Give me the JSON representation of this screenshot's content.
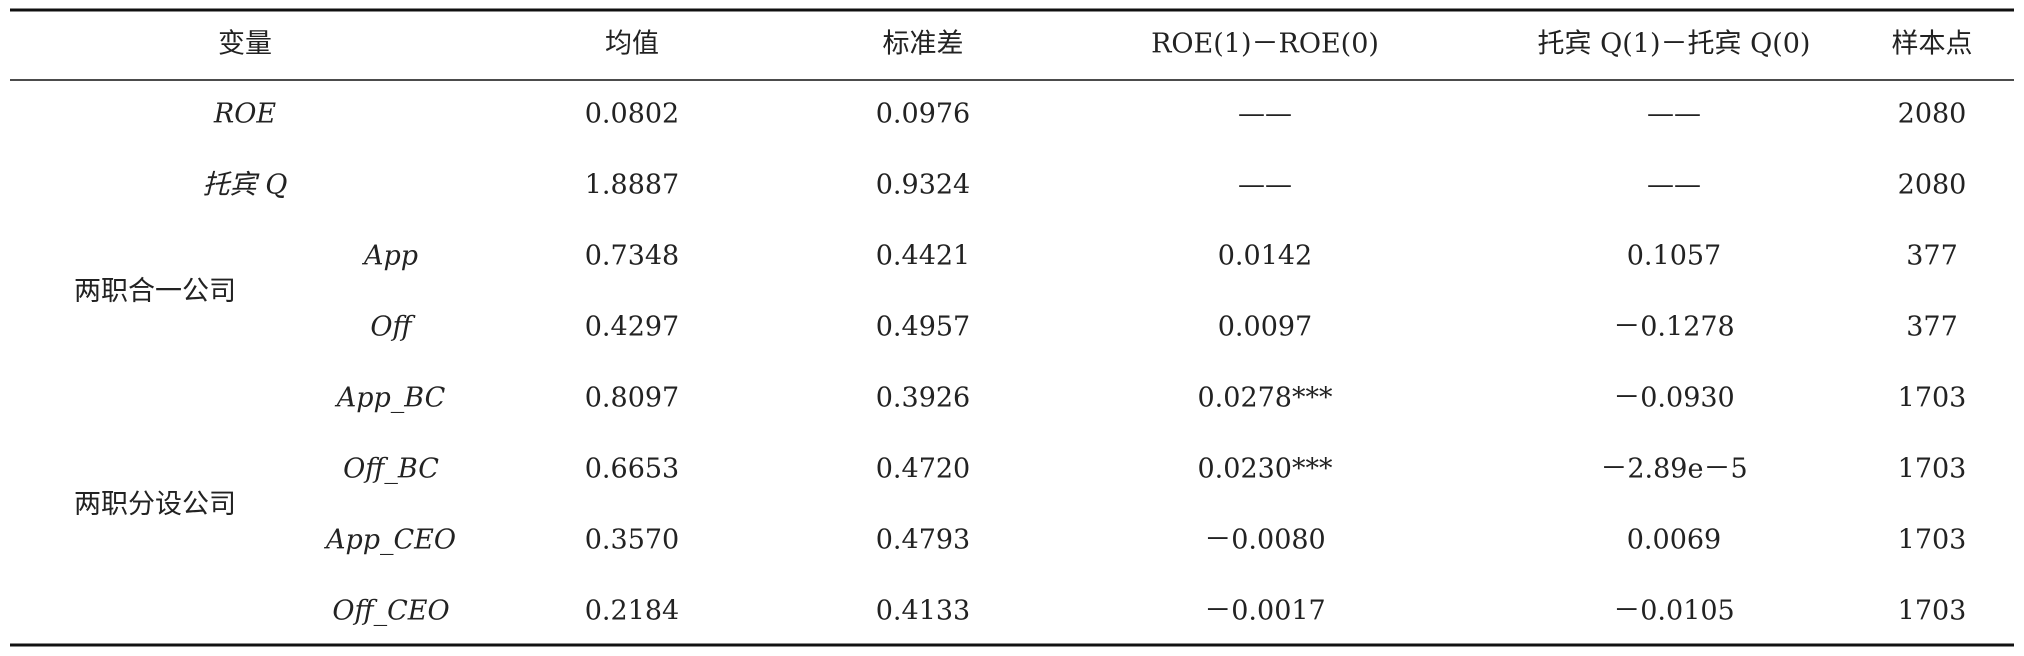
{
  "table": {
    "header": [
      "变量",
      "均值",
      "标准差",
      "ROE(1)－ROE(0)",
      "托宾 Q(1)－托宾 Q(0)",
      "样本点"
    ],
    "rows": [
      {
        "variable": "ROE",
        "cells": [
          "0.0802",
          "0.0976",
          "——",
          "——",
          "2080"
        ]
      },
      {
        "variable": "托宾 Q",
        "cells": [
          "1.8887",
          "0.9324",
          "——",
          "——",
          "2080"
        ]
      }
    ],
    "groups": [
      {
        "label": "两职合一公司",
        "rows": [
          {
            "variable": "App",
            "cells": [
              "0.7348",
              "0.4421",
              "0.0142",
              "0.1057",
              "377"
            ]
          },
          {
            "variable": "Off",
            "cells": [
              "0.4297",
              "0.4957",
              "0.0097",
              "－0.1278",
              "377"
            ]
          }
        ]
      },
      {
        "label": "两职分设公司",
        "rows": [
          {
            "variable": "App_BC",
            "cells": [
              "0.8097",
              "0.3926",
              "0.0278***",
              "－0.0930",
              "1703"
            ]
          },
          {
            "variable": "Off_BC",
            "cells": [
              "0.6653",
              "0.4720",
              "0.0230***",
              "－2.89e－5",
              "1703"
            ]
          },
          {
            "variable": "App_CEO",
            "cells": [
              "0.3570",
              "0.4793",
              "－0.0080",
              "0.0069",
              "1703"
            ]
          },
          {
            "variable": "Off_CEO",
            "cells": [
              "0.2184",
              "0.4133",
              "－0.0017",
              "－0.0105",
              "1703"
            ]
          }
        ]
      }
    ]
  }
}
